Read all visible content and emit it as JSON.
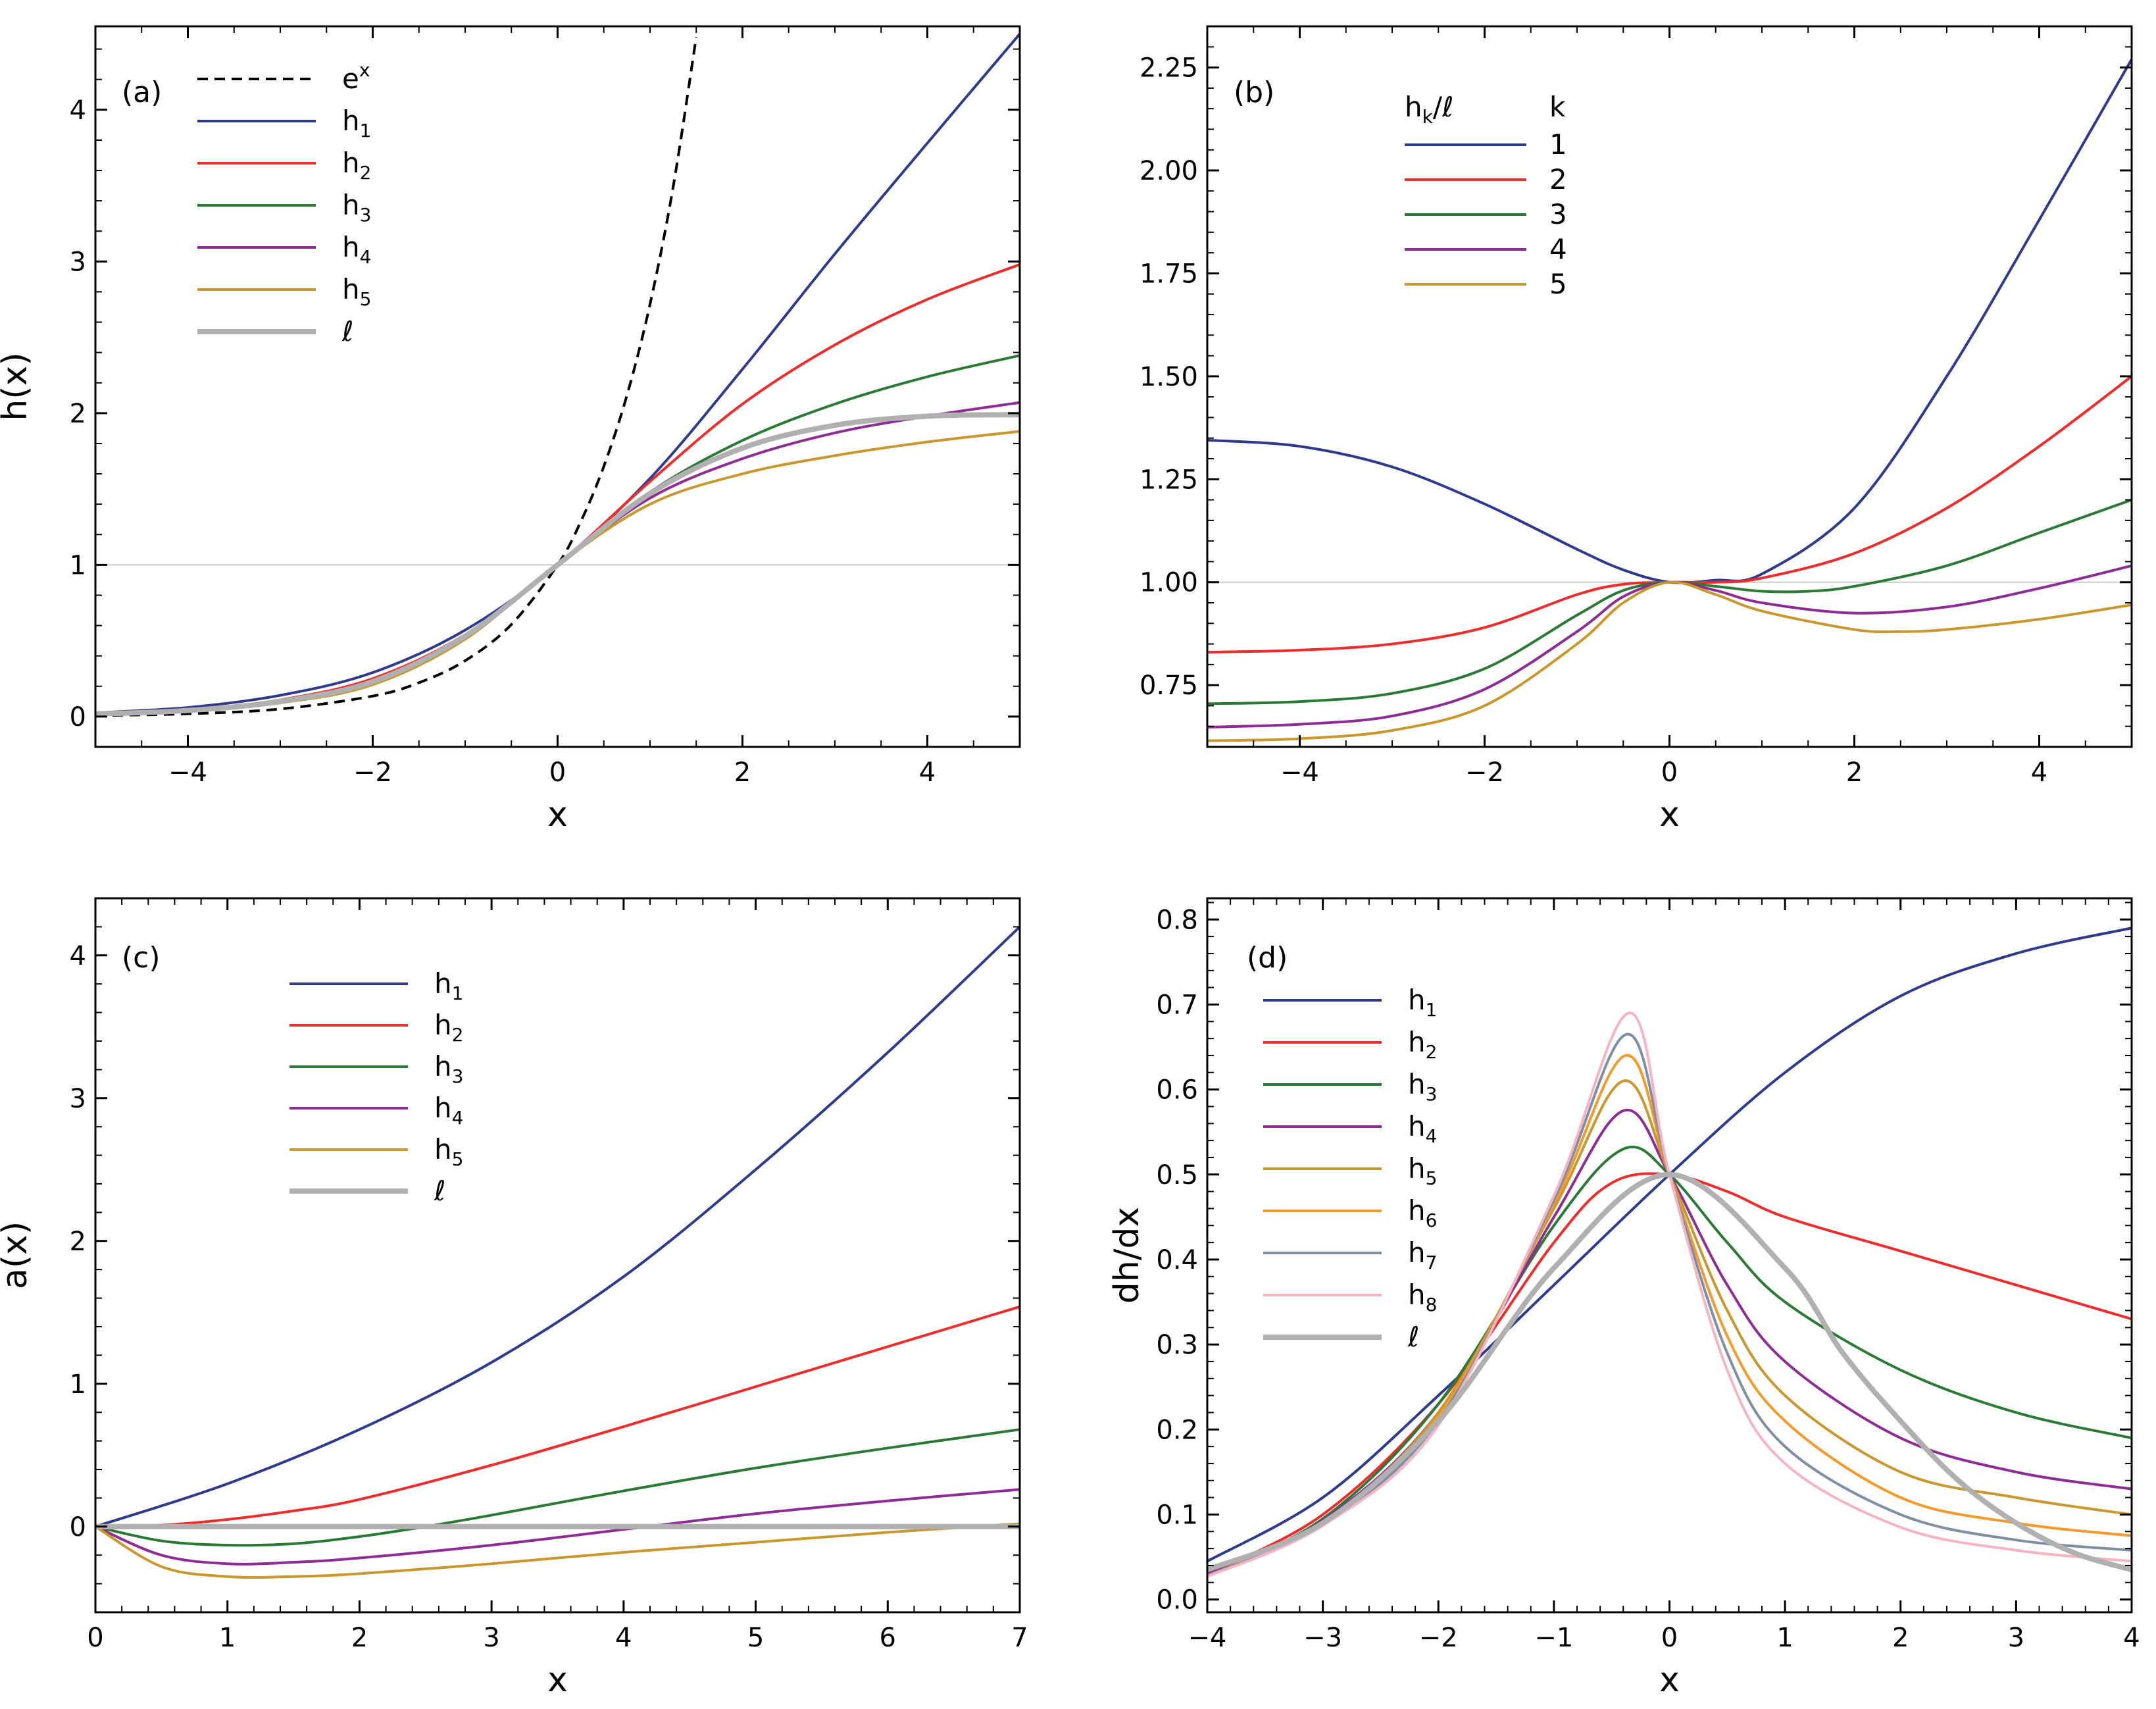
{
  "figure": {
    "title": ""
  },
  "colors": {
    "h1": "#2e3a8c",
    "h2": "#ee2c2c",
    "h3": "#2a7a35",
    "h4": "#8e2c96",
    "h5": "#c8982e",
    "h6": "#f49a2a",
    "h7": "#7f8fa3",
    "h8": "#f6b4c3",
    "ell": "#b0b0b0",
    "exp": "#000000",
    "ref": "#cccccc"
  },
  "chart_data": [
    {
      "id": "a",
      "panel_label": "(a)",
      "type": "line",
      "xlabel": "x",
      "ylabel": "h(x)",
      "xlim": [
        -5,
        5
      ],
      "ylim": [
        -0.2,
        4.55
      ],
      "xticks": [
        -4,
        -2,
        0,
        2,
        4
      ],
      "xtick_labels": [
        "−4",
        "−2",
        "0",
        "2",
        "4"
      ],
      "yticks": [
        0,
        1,
        2,
        3,
        4
      ],
      "ytick_labels": [
        "0",
        "1",
        "2",
        "3",
        "4"
      ],
      "hline": 1,
      "legend_position": "top-left",
      "legend": [
        {
          "base": "e",
          "sup": "x",
          "sub": "",
          "key": "exp"
        },
        {
          "base": "h",
          "sub": "1",
          "sup": "",
          "key": "h1"
        },
        {
          "base": "h",
          "sub": "2",
          "sup": "",
          "key": "h2"
        },
        {
          "base": "h",
          "sub": "3",
          "sup": "",
          "key": "h3"
        },
        {
          "base": "h",
          "sub": "4",
          "sup": "",
          "key": "h4"
        },
        {
          "base": "h",
          "sub": "5",
          "sup": "",
          "key": "h5"
        },
        {
          "base": "ℓ",
          "sub": "",
          "sup": "",
          "key": "ell"
        }
      ],
      "series": [
        {
          "name": "e^x",
          "key": "exp",
          "style": "dashed",
          "x": [
            -5,
            -4,
            -3,
            -2,
            -1.5,
            -1,
            -0.5,
            0,
            0.25,
            0.5,
            0.75,
            1,
            1.25,
            1.5
          ],
          "y": [
            0.0067,
            0.018,
            0.05,
            0.135,
            0.223,
            0.368,
            0.607,
            1.0,
            1.284,
            1.649,
            2.117,
            2.718,
            3.49,
            4.48
          ]
        },
        {
          "name": "h1",
          "key": "h1",
          "style": "solid",
          "x": [
            -5,
            -4,
            -3,
            -2,
            -1,
            0,
            1,
            2,
            3,
            4,
            5
          ],
          "y": [
            0.025,
            0.06,
            0.14,
            0.29,
            0.57,
            1.0,
            1.57,
            2.29,
            3.05,
            3.78,
            4.5
          ]
        },
        {
          "name": "h2",
          "key": "h2",
          "style": "solid",
          "x": [
            -5,
            -4,
            -3,
            -2,
            -1,
            0,
            1,
            2,
            3,
            4,
            5
          ],
          "y": [
            0.02,
            0.045,
            0.11,
            0.25,
            0.54,
            1.0,
            1.55,
            2.06,
            2.45,
            2.75,
            2.98
          ]
        },
        {
          "name": "h3",
          "key": "h3",
          "style": "solid",
          "x": [
            -5,
            -4,
            -3,
            -2,
            -1,
            0,
            1,
            2,
            3,
            4,
            5
          ],
          "y": [
            0.018,
            0.04,
            0.1,
            0.23,
            0.53,
            1.0,
            1.48,
            1.82,
            2.06,
            2.24,
            2.38
          ]
        },
        {
          "name": "h4",
          "key": "h4",
          "style": "solid",
          "x": [
            -5,
            -4,
            -3,
            -2,
            -1,
            0,
            1,
            2,
            3,
            4,
            5
          ],
          "y": [
            0.017,
            0.038,
            0.095,
            0.22,
            0.52,
            1.0,
            1.44,
            1.7,
            1.87,
            1.98,
            2.07
          ]
        },
        {
          "name": "h5",
          "key": "h5",
          "style": "solid",
          "x": [
            -5,
            -4,
            -3,
            -2,
            -1,
            0,
            1,
            2,
            3,
            4,
            5
          ],
          "y": [
            0.016,
            0.035,
            0.09,
            0.21,
            0.51,
            1.0,
            1.4,
            1.6,
            1.72,
            1.81,
            1.88
          ]
        },
        {
          "name": "ℓ",
          "key": "ell",
          "style": "thick",
          "x": [
            -5,
            -4,
            -3,
            -2,
            -1,
            0,
            1,
            2,
            3,
            4,
            5
          ],
          "y": [
            0.017,
            0.04,
            0.1,
            0.23,
            0.53,
            1.0,
            1.47,
            1.77,
            1.92,
            1.98,
            1.99
          ]
        }
      ]
    },
    {
      "id": "b",
      "panel_label": "(b)",
      "type": "line",
      "xlabel": "x",
      "ylabel": "",
      "xlim": [
        -5,
        5
      ],
      "ylim": [
        0.6,
        2.35
      ],
      "xticks": [
        -4,
        -2,
        0,
        2,
        4
      ],
      "xtick_labels": [
        "−4",
        "−2",
        "0",
        "2",
        "4"
      ],
      "yticks": [
        0.75,
        1.0,
        1.25,
        1.5,
        1.75,
        2.0,
        2.25
      ],
      "ytick_labels": [
        "0.75",
        "1.00",
        "1.25",
        "1.50",
        "1.75",
        "2.00",
        "2.25"
      ],
      "hline": 1,
      "legend_position": "top-center",
      "legend_header": {
        "left": "h",
        "left_sub": "k",
        "left_tail": "/ℓ",
        "right": "k"
      },
      "legend": [
        {
          "label": "1",
          "key": "h1"
        },
        {
          "label": "2",
          "key": "h2"
        },
        {
          "label": "3",
          "key": "h3"
        },
        {
          "label": "4",
          "key": "h4"
        },
        {
          "label": "5",
          "key": "h5"
        }
      ],
      "series": [
        {
          "name": "h1/ℓ",
          "key": "h1",
          "x": [
            -5,
            -4,
            -3,
            -2,
            -1,
            -0.5,
            0,
            0.5,
            1,
            2,
            3,
            4,
            5
          ],
          "y": [
            1.345,
            1.33,
            1.28,
            1.19,
            1.08,
            1.03,
            1.0,
            1.005,
            1.02,
            1.18,
            1.5,
            1.88,
            2.27
          ]
        },
        {
          "name": "h2/ℓ",
          "key": "h2",
          "x": [
            -5,
            -4,
            -3,
            -2,
            -1,
            -0.5,
            0,
            0.5,
            1,
            2,
            3,
            4,
            5
          ],
          "y": [
            0.83,
            0.835,
            0.85,
            0.89,
            0.97,
            0.995,
            1.0,
            1.0,
            1.01,
            1.07,
            1.18,
            1.33,
            1.5
          ]
        },
        {
          "name": "h3/ℓ",
          "key": "h3",
          "x": [
            -5,
            -4,
            -3,
            -2,
            -1,
            -0.5,
            0,
            0.5,
            1,
            1.5,
            2,
            3,
            4,
            5
          ],
          "y": [
            0.705,
            0.71,
            0.73,
            0.79,
            0.92,
            0.98,
            1.0,
            0.99,
            0.978,
            0.978,
            0.99,
            1.04,
            1.12,
            1.2
          ]
        },
        {
          "name": "h4/ℓ",
          "key": "h4",
          "x": [
            -5,
            -4,
            -3,
            -2,
            -1,
            -0.5,
            0,
            0.5,
            1,
            2,
            3,
            4,
            5
          ],
          "y": [
            0.648,
            0.655,
            0.675,
            0.74,
            0.88,
            0.965,
            1.0,
            0.98,
            0.95,
            0.925,
            0.94,
            0.985,
            1.04
          ]
        },
        {
          "name": "h5/ℓ",
          "key": "h5",
          "x": [
            -5,
            -4,
            -3,
            -2,
            -1,
            -0.5,
            0,
            0.5,
            1,
            2,
            2.5,
            3,
            4,
            5
          ],
          "y": [
            0.615,
            0.62,
            0.64,
            0.7,
            0.85,
            0.95,
            1.0,
            0.97,
            0.93,
            0.885,
            0.88,
            0.885,
            0.91,
            0.945
          ]
        }
      ]
    },
    {
      "id": "c",
      "panel_label": "(c)",
      "type": "line",
      "xlabel": "x",
      "ylabel": "a(x)",
      "xlim": [
        0,
        7
      ],
      "ylim": [
        -0.6,
        4.4
      ],
      "xticks": [
        0,
        1,
        2,
        3,
        4,
        5,
        6,
        7
      ],
      "xtick_labels": [
        "0",
        "1",
        "2",
        "3",
        "4",
        "5",
        "6",
        "7"
      ],
      "yticks": [
        0,
        1,
        2,
        3,
        4
      ],
      "ytick_labels": [
        "0",
        "1",
        "2",
        "3",
        "4"
      ],
      "hline": null,
      "legend_position": "top-left",
      "legend": [
        {
          "base": "h",
          "sub": "1",
          "sup": "",
          "key": "h1"
        },
        {
          "base": "h",
          "sub": "2",
          "sup": "",
          "key": "h2"
        },
        {
          "base": "h",
          "sub": "3",
          "sup": "",
          "key": "h3"
        },
        {
          "base": "h",
          "sub": "4",
          "sup": "",
          "key": "h4"
        },
        {
          "base": "h",
          "sub": "5",
          "sup": "",
          "key": "h5"
        },
        {
          "base": "ℓ",
          "sub": "",
          "sup": "",
          "key": "ell"
        }
      ],
      "series": [
        {
          "name": "h1",
          "key": "h1",
          "x": [
            0,
            1,
            2,
            3,
            4,
            5,
            6,
            7
          ],
          "y": [
            0.0,
            0.3,
            0.68,
            1.15,
            1.75,
            2.5,
            3.32,
            4.2
          ]
        },
        {
          "name": "h2",
          "key": "h2",
          "x": [
            0,
            0.5,
            1,
            1.5,
            2,
            3,
            4,
            5,
            6,
            7
          ],
          "y": [
            0.0,
            0.01,
            0.05,
            0.11,
            0.19,
            0.43,
            0.7,
            0.98,
            1.26,
            1.54
          ]
        },
        {
          "name": "h3",
          "key": "h3",
          "x": [
            0,
            0.5,
            1,
            1.5,
            2,
            2.5,
            3,
            4,
            5,
            6,
            7
          ],
          "y": [
            0.0,
            -0.1,
            -0.13,
            -0.12,
            -0.07,
            0.0,
            0.08,
            0.25,
            0.41,
            0.55,
            0.68
          ]
        },
        {
          "name": "h4",
          "key": "h4",
          "x": [
            0,
            0.5,
            1,
            1.5,
            2,
            3,
            4,
            5,
            6,
            7
          ],
          "y": [
            0.0,
            -0.2,
            -0.26,
            -0.25,
            -0.22,
            -0.13,
            -0.02,
            0.09,
            0.18,
            0.26
          ]
        },
        {
          "name": "h5",
          "key": "h5",
          "x": [
            0,
            0.5,
            1,
            1.5,
            2,
            3,
            4,
            5,
            6,
            7
          ],
          "y": [
            0.0,
            -0.28,
            -0.35,
            -0.35,
            -0.33,
            -0.26,
            -0.18,
            -0.11,
            -0.04,
            0.02
          ]
        },
        {
          "name": "ℓ",
          "key": "ell",
          "style": "thick",
          "x": [
            0,
            7
          ],
          "y": [
            0,
            0
          ]
        }
      ]
    },
    {
      "id": "d",
      "panel_label": "(d)",
      "type": "line",
      "xlabel": "x",
      "ylabel": "dh/dx",
      "xlim": [
        -4,
        4
      ],
      "ylim": [
        -0.015,
        0.825
      ],
      "xticks": [
        -4,
        -3,
        -2,
        -1,
        0,
        1,
        2,
        3,
        4
      ],
      "xtick_labels": [
        "−4",
        "−3",
        "−2",
        "−1",
        "0",
        "1",
        "2",
        "3",
        "4"
      ],
      "yticks": [
        0.0,
        0.1,
        0.2,
        0.3,
        0.4,
        0.5,
        0.6,
        0.7,
        0.8
      ],
      "ytick_labels": [
        "0.0",
        "0.1",
        "0.2",
        "0.3",
        "0.4",
        "0.5",
        "0.6",
        "0.7",
        "0.8"
      ],
      "hline": null,
      "legend_position": "top-left",
      "legend": [
        {
          "base": "h",
          "sub": "1",
          "sup": "",
          "key": "h1"
        },
        {
          "base": "h",
          "sub": "2",
          "sup": "",
          "key": "h2"
        },
        {
          "base": "h",
          "sub": "3",
          "sup": "",
          "key": "h3"
        },
        {
          "base": "h",
          "sub": "4",
          "sup": "",
          "key": "h4"
        },
        {
          "base": "h",
          "sub": "5",
          "sup": "",
          "key": "h5"
        },
        {
          "base": "h",
          "sub": "6",
          "sup": "",
          "key": "h6"
        },
        {
          "base": "h",
          "sub": "7",
          "sup": "",
          "key": "h7"
        },
        {
          "base": "h",
          "sub": "8",
          "sup": "",
          "key": "h8"
        },
        {
          "base": "ℓ",
          "sub": "",
          "sup": "",
          "key": "ell"
        }
      ],
      "series": [
        {
          "name": "h1",
          "key": "h1",
          "x": [
            -4,
            -3,
            -2,
            -1,
            0,
            1,
            2,
            3,
            4
          ],
          "y": [
            0.045,
            0.12,
            0.24,
            0.37,
            0.5,
            0.62,
            0.71,
            0.76,
            0.79
          ]
        },
        {
          "name": "h2",
          "key": "h2",
          "x": [
            -4,
            -3,
            -2,
            -1,
            -0.5,
            0,
            0.5,
            1,
            2,
            3,
            4
          ],
          "y": [
            0.03,
            0.1,
            0.23,
            0.42,
            0.49,
            0.5,
            0.48,
            0.45,
            0.41,
            0.37,
            0.33
          ]
        },
        {
          "name": "h3",
          "key": "h3",
          "x": [
            -4,
            -3,
            -2,
            -1,
            -0.4,
            0,
            0.5,
            1,
            2,
            3,
            4
          ],
          "y": [
            0.03,
            0.095,
            0.23,
            0.44,
            0.53,
            0.5,
            0.42,
            0.35,
            0.27,
            0.22,
            0.19
          ]
        },
        {
          "name": "h4",
          "key": "h4",
          "x": [
            -4,
            -3,
            -2,
            -1,
            -0.4,
            0,
            0.5,
            1,
            2,
            3,
            4
          ],
          "y": [
            0.03,
            0.093,
            0.22,
            0.45,
            0.575,
            0.5,
            0.37,
            0.28,
            0.19,
            0.15,
            0.13
          ]
        },
        {
          "name": "h5",
          "key": "h5",
          "x": [
            -4,
            -3,
            -2,
            -1,
            -0.4,
            0,
            0.5,
            1,
            2,
            3,
            4
          ],
          "y": [
            0.028,
            0.091,
            0.22,
            0.46,
            0.61,
            0.5,
            0.34,
            0.24,
            0.15,
            0.12,
            0.1
          ]
        },
        {
          "name": "h6",
          "key": "h6",
          "x": [
            -4,
            -3,
            -2,
            -1,
            -0.38,
            0,
            0.5,
            1,
            2,
            3,
            4
          ],
          "y": [
            0.028,
            0.09,
            0.215,
            0.465,
            0.64,
            0.5,
            0.31,
            0.21,
            0.12,
            0.09,
            0.075
          ]
        },
        {
          "name": "h7",
          "key": "h7",
          "x": [
            -4,
            -3,
            -2,
            -1,
            -0.37,
            0,
            0.5,
            1,
            2,
            3,
            4
          ],
          "y": [
            0.028,
            0.088,
            0.21,
            0.47,
            0.665,
            0.5,
            0.29,
            0.18,
            0.1,
            0.07,
            0.058
          ]
        },
        {
          "name": "h8",
          "key": "h8",
          "x": [
            -4,
            -3,
            -2,
            -1,
            -0.35,
            0,
            0.5,
            1,
            2,
            3,
            4
          ],
          "y": [
            0.027,
            0.087,
            0.205,
            0.475,
            0.69,
            0.5,
            0.27,
            0.16,
            0.085,
            0.058,
            0.045
          ]
        },
        {
          "name": "ℓ",
          "key": "ell",
          "style": "thick",
          "x": [
            -4,
            -3,
            -2,
            -1,
            0,
            1,
            1.5,
            2,
            2.5,
            3,
            3.5,
            4
          ],
          "y": [
            0.035,
            0.09,
            0.21,
            0.39,
            0.5,
            0.39,
            0.29,
            0.21,
            0.14,
            0.09,
            0.055,
            0.035
          ]
        }
      ]
    }
  ]
}
